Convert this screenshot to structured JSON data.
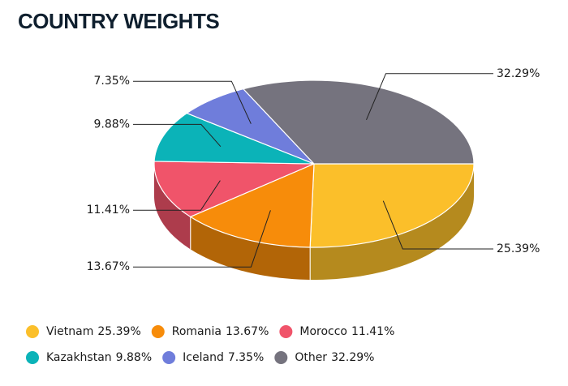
{
  "chart_data": {
    "type": "pie3d",
    "title": "COUNTRY WEIGHTS",
    "categories": [
      "Vietnam",
      "Romania",
      "Morocco",
      "Kazakhstan",
      "Iceland",
      "Other"
    ],
    "values": [
      25.39,
      13.67,
      11.41,
      9.88,
      7.35,
      32.29
    ],
    "value_labels": [
      "25.39%",
      "13.67%",
      "11.41%",
      "9.88%",
      "7.35%",
      "32.29%"
    ],
    "colors": [
      "#fbbf2a",
      "#f78c0a",
      "#f0546a",
      "#0bb3b8",
      "#6f7ddb",
      "#75737e"
    ],
    "legend": "bottom"
  }
}
